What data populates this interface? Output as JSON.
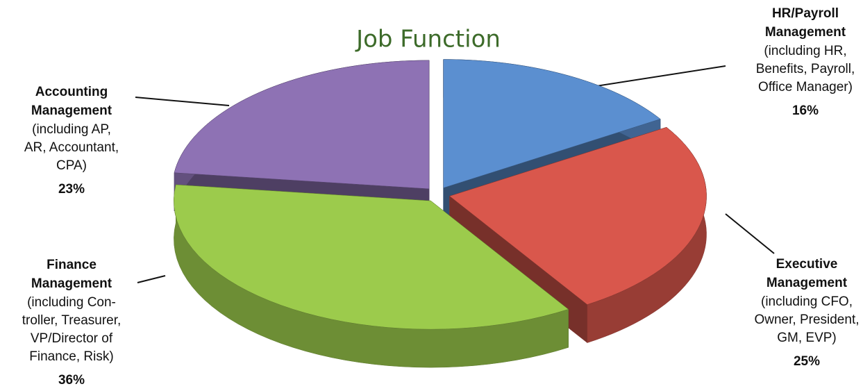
{
  "chart_data": {
    "type": "pie3d",
    "title": "Job Function",
    "categories": [
      [
        "HR/Payroll",
        "Management"
      ],
      [
        "Executive",
        "Management"
      ],
      [
        "Finance",
        "Management"
      ],
      [
        "Accounting",
        "Management"
      ]
    ],
    "notes": [
      [
        "(including HR,",
        "Benefits, Payroll,",
        "Office Manager)"
      ],
      [
        "(including CFO,",
        "Owner, President,",
        "GM, EVP)"
      ],
      [
        "(including Con-",
        "troller, Treasurer,",
        "VP/Director of",
        "Finance, Risk)"
      ],
      [
        "(including AP,",
        "AR, Accountant,",
        "CPA)"
      ]
    ],
    "values": [
      16,
      25,
      36,
      23
    ],
    "value_labels": [
      "16%",
      "25%",
      "36%",
      "23%"
    ],
    "colors": [
      "#5b8fd0",
      "#d9574c",
      "#9ccb4c",
      "#8e72b4"
    ]
  }
}
